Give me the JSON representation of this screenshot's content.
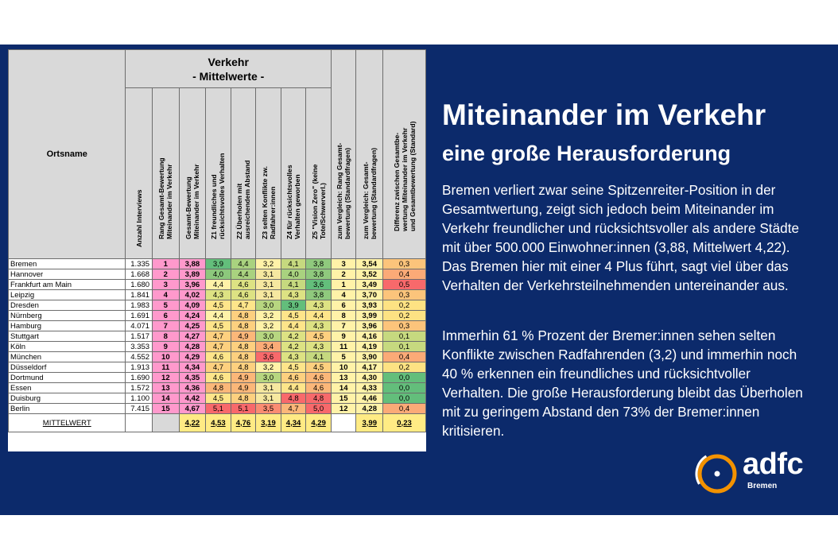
{
  "table": {
    "caption_top": "Verkehr",
    "caption_sub": "- Mittelwerte -",
    "columns": [
      "Ortsname",
      "Anzahl Interviews",
      "Rang Gesamt-Bewertung\nMiteinander im Verkehr",
      "Gesamt-Bewertung\nMiteinander im Verkehr",
      "Z1 freundliches und\nrücksichtsvolles Verhalten",
      "Z2 Überholen mit\nausreichendem Abstand",
      "Z3 selten Konflikte zw.\nRadfahrer:innen",
      "Z4 für rücksichtsvolles\nVerhalten geworben",
      "Z5 \"Vision Zero\" (keine\nTote/Schwerverl.)",
      "zum Vergleich: Rang Gesamt-\nbewertung (Standardfragen)",
      "zum Vergleich: Gesamt-\nbewertung (Standardfragen)",
      "Differenz zwischen Gesamtbe-\nwertung Miteinander im Verkehr\nund Gesamtbewertung (Standard)"
    ],
    "rows": [
      {
        "city": "Bremen",
        "n": "1.335",
        "rank": "1",
        "score": "3,88",
        "z": [
          "3,9",
          "4,4",
          "3,2",
          "4,1",
          "3,8"
        ],
        "zc": [
          "#63be7b",
          "#a9d27f",
          "#fff2a8",
          "#c6d97f",
          "#8fc97d"
        ],
        "cmp_rank": "3",
        "cmp_score": "3,54",
        "diff": "0,3",
        "dc": "#fcc47b"
      },
      {
        "city": "Hannover",
        "n": "1.668",
        "rank": "2",
        "score": "3,89",
        "z": [
          "4,0",
          "4,4",
          "3,1",
          "4,0",
          "3,8"
        ],
        "zc": [
          "#8cc87c",
          "#a9d27f",
          "#f6e8a0",
          "#a9d27f",
          "#8fc97d"
        ],
        "cmp_rank": "2",
        "cmp_score": "3,52",
        "diff": "0,4",
        "dc": "#fbaa77"
      },
      {
        "city": "Frankfurt am Main",
        "n": "1.680",
        "rank": "3",
        "score": "3,96",
        "z": [
          "4,4",
          "4,6",
          "3,1",
          "4,1",
          "3,6"
        ],
        "zc": [
          "#fff2a8",
          "#dde283",
          "#f6e8a0",
          "#c6d97f",
          "#63be7b"
        ],
        "cmp_rank": "1",
        "cmp_score": "3,49",
        "diff": "0,5",
        "dc": "#f8696b"
      },
      {
        "city": "Leipzig",
        "n": "1.841",
        "rank": "4",
        "score": "4,02",
        "z": [
          "4,3",
          "4,6",
          "3,1",
          "4,3",
          "3,8"
        ],
        "zc": [
          "#dde283",
          "#dde283",
          "#f6e8a0",
          "#dde283",
          "#8fc97d"
        ],
        "cmp_rank": "4",
        "cmp_score": "3,70",
        "diff": "0,3",
        "dc": "#fcc47b"
      },
      {
        "city": "Dresden",
        "n": "1.983",
        "rank": "5",
        "score": "4,09",
        "z": [
          "4,5",
          "4,7",
          "3,0",
          "3,9",
          "4,3"
        ],
        "zc": [
          "#fee58a",
          "#fee58a",
          "#b7d680",
          "#63be7b",
          "#dde283"
        ],
        "cmp_rank": "6",
        "cmp_score": "3,93",
        "diff": "0,2",
        "dc": "#fde283"
      },
      {
        "city": "Nürnberg",
        "n": "1.691",
        "rank": "6",
        "score": "4,24",
        "z": [
          "4,4",
          "4,8",
          "3,2",
          "4,5",
          "4,4"
        ],
        "zc": [
          "#fff2a8",
          "#fdd07f",
          "#fff2a8",
          "#fee58a",
          "#fee58a"
        ],
        "cmp_rank": "8",
        "cmp_score": "3,99",
        "diff": "0,2",
        "dc": "#fde283"
      },
      {
        "city": "Hamburg",
        "n": "4.071",
        "rank": "7",
        "score": "4,25",
        "z": [
          "4,5",
          "4,8",
          "3,2",
          "4,4",
          "4,3"
        ],
        "zc": [
          "#fee58a",
          "#fdd07f",
          "#fff2a8",
          "#fee58a",
          "#dde283"
        ],
        "cmp_rank": "7",
        "cmp_score": "3,96",
        "diff": "0,3",
        "dc": "#fcc47b"
      },
      {
        "city": "Stuttgart",
        "n": "1.517",
        "rank": "8",
        "score": "4,27",
        "z": [
          "4,7",
          "4,9",
          "3,0",
          "4,2",
          "4,5"
        ],
        "zc": [
          "#fdd07f",
          "#fbb779",
          "#b7d680",
          "#dde283",
          "#fdd07f"
        ],
        "cmp_rank": "9",
        "cmp_score": "4,16",
        "diff": "0,1",
        "dc": "#c6d97f"
      },
      {
        "city": "Köln",
        "n": "3.353",
        "rank": "9",
        "score": "4,28",
        "z": [
          "4,7",
          "4,8",
          "3,4",
          "4,2",
          "4,3"
        ],
        "zc": [
          "#fdd07f",
          "#fdd07f",
          "#fbab77",
          "#dde283",
          "#dde283"
        ],
        "cmp_rank": "11",
        "cmp_score": "4,19",
        "diff": "0,1",
        "dc": "#c6d97f"
      },
      {
        "city": "München",
        "n": "4.552",
        "rank": "10",
        "score": "4,29",
        "z": [
          "4,6",
          "4,8",
          "3,6",
          "4,3",
          "4,1"
        ],
        "zc": [
          "#fee58a",
          "#fdd07f",
          "#f8696b",
          "#dde283",
          "#c6d97f"
        ],
        "cmp_rank": "5",
        "cmp_score": "3,90",
        "diff": "0,4",
        "dc": "#fbaa77"
      },
      {
        "city": "Düsseldorf",
        "n": "1.913",
        "rank": "11",
        "score": "4,34",
        "z": [
          "4,7",
          "4,8",
          "3,2",
          "4,5",
          "4,5"
        ],
        "zc": [
          "#fdd07f",
          "#fdd07f",
          "#fff2a8",
          "#fee58a",
          "#fdd07f"
        ],
        "cmp_rank": "10",
        "cmp_score": "4,17",
        "diff": "0,2",
        "dc": "#fde283"
      },
      {
        "city": "Dortmund",
        "n": "1.690",
        "rank": "12",
        "score": "4,35",
        "z": [
          "4,6",
          "4,9",
          "3,0",
          "4,6",
          "4,6"
        ],
        "zc": [
          "#fee58a",
          "#fbb779",
          "#b7d680",
          "#fdd07f",
          "#fbb779"
        ],
        "cmp_rank": "13",
        "cmp_score": "4,30",
        "diff": "0,0",
        "dc": "#63be7b"
      },
      {
        "city": "Essen",
        "n": "1.572",
        "rank": "13",
        "score": "4,36",
        "z": [
          "4,8",
          "4,9",
          "3,1",
          "4,4",
          "4,6"
        ],
        "zc": [
          "#fbb779",
          "#fbb779",
          "#f6e8a0",
          "#fee58a",
          "#fbb779"
        ],
        "cmp_rank": "14",
        "cmp_score": "4,33",
        "diff": "0,0",
        "dc": "#63be7b"
      },
      {
        "city": "Duisburg",
        "n": "1.100",
        "rank": "14",
        "score": "4,42",
        "z": [
          "4,5",
          "4,8",
          "3,1",
          "4,8",
          "4,8"
        ],
        "zc": [
          "#fee58a",
          "#fdd07f",
          "#f6e8a0",
          "#f8696b",
          "#f8696b"
        ],
        "cmp_rank": "15",
        "cmp_score": "4,46",
        "diff": "0,0",
        "dc": "#63be7b"
      },
      {
        "city": "Berlin",
        "n": "7.415",
        "rank": "15",
        "score": "4,67",
        "z": [
          "5,1",
          "5,1",
          "3,5",
          "4,7",
          "5,0"
        ],
        "zc": [
          "#f8696b",
          "#f8696b",
          "#fa8c72",
          "#fbb779",
          "#f8696b"
        ],
        "cmp_rank": "12",
        "cmp_score": "4,28",
        "diff": "0,4",
        "dc": "#fbaa77"
      }
    ],
    "mean": {
      "label": "MITTELWERT",
      "score": "4,22",
      "z": [
        "4,53",
        "4,76",
        "3,19",
        "4,34",
        "4,29"
      ],
      "cmp_score": "3,99",
      "diff": "0,23"
    }
  },
  "text": {
    "title": "Miteinander im Verkehr",
    "subtitle": "eine große Herausforderung",
    "p1": "Bremen verliert zwar seine Spitzenreiter-Position in der Gesamtwertung, zeigt sich jedoch beim Miteinander im Verkehr freundlicher und rücksichtsvoller als andere Städte mit über 500.000 Einwohner:innen  (3,88, Mittelwert 4,22). Das Bremen hier mit einer 4 Plus führt, sagt viel über das Verhalten der Verkehrsteilnehmenden untereinander aus.",
    "p2": "Immerhin 61 % Prozent der Bremer:innen sehen selten Konflikte zwischen Radfahrenden (3,2) und immerhin noch 40 % erkennen ein freundliches und rücksichtvoller Verhalten. Die große Herausforderung bleibt das Überholen mit zu geringem Abstand den 73% der Bremer:innen kritisieren."
  },
  "logo": {
    "name": "adfc",
    "sub": "Bremen",
    "ring_color": "#f39200"
  },
  "colors": {
    "background": "#0c2a6b",
    "rank_cells": "#ff99cc",
    "compare_cells": "#fff2a8"
  }
}
